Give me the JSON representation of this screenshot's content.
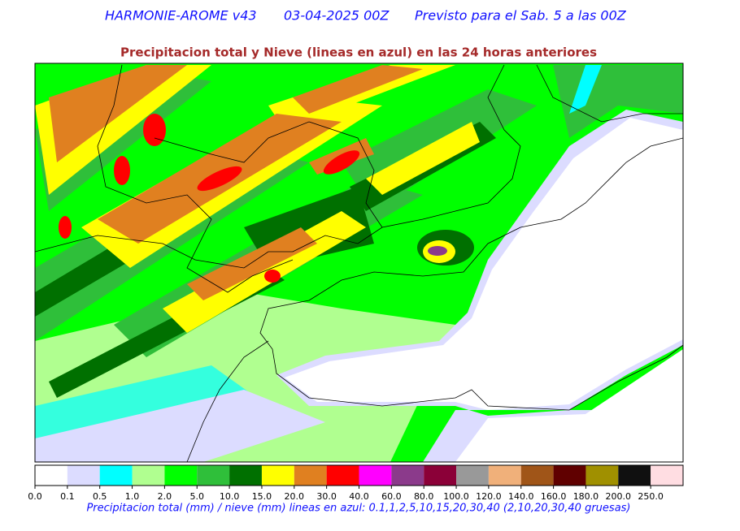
{
  "header": {
    "model": "HARMONIE-AROME v43",
    "run": "03-04-2025 00Z",
    "forecast": "Previsto para el Sab. 5 a las 00Z"
  },
  "title": "Precipitacion total y Nieve (lineas en azul) en las 24 horas anteriores",
  "colorbar": {
    "colors": [
      "#ffffff",
      "#dcdcff",
      "#00ffff",
      "#b0ff90",
      "#00ff00",
      "#2fbf3a",
      "#007000",
      "#ffff00",
      "#e08020",
      "#ff0000",
      "#ff00ff",
      "#8b3a8b",
      "#8b0038",
      "#999999",
      "#f0b07a",
      "#a05518",
      "#600000",
      "#a09000",
      "#101010",
      "#ffdde2"
    ],
    "ticks": [
      "0.0",
      "0.1",
      "0.5",
      "1.0",
      "2.0",
      "5.0",
      "10.0",
      "15.0",
      "20.0",
      "30.0",
      "40.0",
      "60.0",
      "80.0",
      "100.0",
      "120.0",
      "140.0",
      "160.0",
      "180.0",
      "200.0",
      "250.0"
    ]
  },
  "caption": "Precipitacion total (mm) / nieve (mm) lineas en azul: 0.1,1,2,5,10,15,20,30,40  (2,10,20,30,40 gruesas)"
}
